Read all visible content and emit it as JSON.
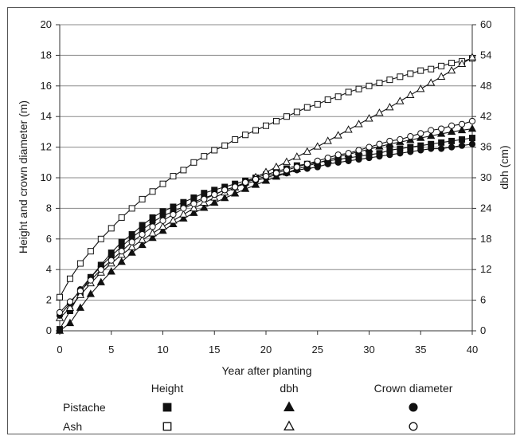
{
  "chart_data": {
    "type": "line",
    "xlabel": "Year after planting",
    "ylabel_left": "Height and crown diameter (m)",
    "ylabel_right": "dbh (cm)",
    "xlim": [
      0,
      40
    ],
    "ylim_left": [
      0,
      20
    ],
    "ylim_right": [
      0,
      60
    ],
    "x_ticks": [
      0,
      5,
      10,
      15,
      20,
      25,
      30,
      35,
      40
    ],
    "y_ticks_left": [
      0,
      2,
      4,
      6,
      8,
      10,
      12,
      14,
      16,
      18,
      20
    ],
    "y_ticks_right": [
      0,
      6,
      12,
      18,
      24,
      30,
      36,
      42,
      48,
      54,
      60
    ],
    "grid": "horizontal",
    "legend": {
      "position": "bottom",
      "columns": [
        "Height",
        "dbh",
        "Crown diameter"
      ],
      "rows": [
        "Pistache",
        "Ash"
      ]
    },
    "series": [
      {
        "name": "Pistache Height",
        "species": "Pistache",
        "measure": "Height",
        "axis": "left",
        "marker": "square",
        "fill": "filled",
        "x": [
          0,
          1,
          2,
          3,
          4,
          5,
          6,
          7,
          8,
          9,
          10,
          11,
          12,
          13,
          14,
          15,
          16,
          17,
          18,
          19,
          20,
          21,
          22,
          23,
          24,
          25,
          26,
          27,
          28,
          29,
          30,
          31,
          32,
          33,
          34,
          35,
          36,
          37,
          38,
          39,
          40
        ],
        "y": [
          0.1,
          1.3,
          2.5,
          3.5,
          4.3,
          5.1,
          5.8,
          6.3,
          6.9,
          7.4,
          7.8,
          8.1,
          8.4,
          8.7,
          9.0,
          9.2,
          9.4,
          9.6,
          9.8,
          10.0,
          10.2,
          10.4,
          10.6,
          10.8,
          10.9,
          11.0,
          11.1,
          11.2,
          11.3,
          11.4,
          11.5,
          11.6,
          11.8,
          11.9,
          12.0,
          12.1,
          12.2,
          12.3,
          12.4,
          12.5,
          12.6
        ]
      },
      {
        "name": "Ash Height",
        "species": "Ash",
        "measure": "Height",
        "axis": "left",
        "marker": "square",
        "fill": "open",
        "x": [
          0,
          1,
          2,
          3,
          4,
          5,
          6,
          7,
          8,
          9,
          10,
          11,
          12,
          13,
          14,
          15,
          16,
          17,
          18,
          19,
          20,
          21,
          22,
          23,
          24,
          25,
          26,
          27,
          28,
          29,
          30,
          31,
          32,
          33,
          34,
          35,
          36,
          37,
          38,
          39,
          40
        ],
        "y": [
          2.2,
          3.4,
          4.4,
          5.2,
          6.0,
          6.7,
          7.4,
          8.0,
          8.6,
          9.1,
          9.6,
          10.1,
          10.5,
          11.0,
          11.4,
          11.8,
          12.1,
          12.5,
          12.8,
          13.1,
          13.4,
          13.7,
          14.0,
          14.3,
          14.6,
          14.8,
          15.1,
          15.3,
          15.6,
          15.8,
          16.0,
          16.2,
          16.4,
          16.6,
          16.8,
          17.0,
          17.1,
          17.3,
          17.5,
          17.6,
          17.8
        ]
      },
      {
        "name": "Pistache dbh",
        "species": "Pistache",
        "measure": "dbh",
        "axis": "right",
        "marker": "triangle",
        "fill": "filled",
        "x": [
          0,
          1,
          2,
          3,
          4,
          5,
          6,
          7,
          8,
          9,
          10,
          11,
          12,
          13,
          14,
          15,
          16,
          17,
          18,
          19,
          20,
          21,
          22,
          23,
          24,
          25,
          26,
          27,
          28,
          29,
          30,
          31,
          32,
          33,
          34,
          35,
          36,
          37,
          38,
          39,
          40
        ],
        "y": [
          0,
          1.5,
          4.5,
          7.2,
          9.5,
          11.6,
          13.5,
          15.3,
          16.8,
          18.2,
          19.6,
          20.9,
          22.0,
          23.1,
          24.1,
          25.1,
          26.0,
          26.9,
          27.8,
          28.6,
          29.4,
          30.2,
          31.0,
          31.7,
          32.3,
          32.9,
          33.5,
          34.1,
          34.6,
          35.1,
          35.6,
          36.1,
          36.6,
          37.0,
          37.4,
          37.8,
          38.2,
          38.6,
          39.0,
          39.3,
          39.6
        ]
      },
      {
        "name": "Ash dbh",
        "species": "Ash",
        "measure": "dbh",
        "axis": "right",
        "marker": "triangle",
        "fill": "open",
        "x": [
          0,
          1,
          2,
          3,
          4,
          5,
          6,
          7,
          8,
          9,
          10,
          11,
          12,
          13,
          14,
          15,
          16,
          17,
          18,
          19,
          20,
          21,
          22,
          23,
          24,
          25,
          26,
          27,
          28,
          29,
          30,
          31,
          32,
          33,
          34,
          35,
          36,
          37,
          38,
          39,
          40
        ],
        "y": [
          2.5,
          4.5,
          7.0,
          9.3,
          11.4,
          13.2,
          14.9,
          16.4,
          17.8,
          19.1,
          20.4,
          21.6,
          22.8,
          24.0,
          25.1,
          26.1,
          27.1,
          28.1,
          29.1,
          30.1,
          31.1,
          32.1,
          33.1,
          34.1,
          35.1,
          36.1,
          37.2,
          38.3,
          39.4,
          40.5,
          41.6,
          42.7,
          43.8,
          45.0,
          46.2,
          47.4,
          48.6,
          49.8,
          51.0,
          52.3,
          53.6
        ]
      },
      {
        "name": "Pistache Crown diameter",
        "species": "Pistache",
        "measure": "Crown diameter",
        "axis": "left",
        "marker": "circle",
        "fill": "filled",
        "x": [
          0,
          1,
          2,
          3,
          4,
          5,
          6,
          7,
          8,
          9,
          10,
          11,
          12,
          13,
          14,
          15,
          16,
          17,
          18,
          19,
          20,
          21,
          22,
          23,
          24,
          25,
          26,
          27,
          28,
          29,
          30,
          31,
          32,
          33,
          34,
          35,
          36,
          37,
          38,
          39,
          40
        ],
        "y": [
          1.0,
          1.8,
          2.7,
          3.5,
          4.2,
          4.9,
          5.5,
          6.1,
          6.6,
          7.1,
          7.5,
          7.8,
          8.1,
          8.4,
          8.7,
          8.9,
          9.2,
          9.4,
          9.6,
          9.8,
          10.0,
          10.2,
          10.3,
          10.5,
          10.6,
          10.7,
          10.9,
          11.0,
          11.1,
          11.2,
          11.3,
          11.4,
          11.5,
          11.6,
          11.7,
          11.8,
          11.9,
          11.9,
          12.0,
          12.1,
          12.2
        ]
      },
      {
        "name": "Ash Crown diameter",
        "species": "Ash",
        "measure": "Crown diameter",
        "axis": "left",
        "marker": "circle",
        "fill": "open",
        "x": [
          0,
          1,
          2,
          3,
          4,
          5,
          6,
          7,
          8,
          9,
          10,
          11,
          12,
          13,
          14,
          15,
          16,
          17,
          18,
          19,
          20,
          21,
          22,
          23,
          24,
          25,
          26,
          27,
          28,
          29,
          30,
          31,
          32,
          33,
          34,
          35,
          36,
          37,
          38,
          39,
          40
        ],
        "y": [
          1.2,
          1.9,
          2.6,
          3.3,
          4.0,
          4.6,
          5.2,
          5.8,
          6.3,
          6.8,
          7.2,
          7.6,
          8.0,
          8.3,
          8.6,
          8.9,
          9.2,
          9.4,
          9.7,
          9.9,
          10.1,
          10.3,
          10.5,
          10.7,
          10.9,
          11.1,
          11.3,
          11.5,
          11.6,
          11.8,
          12.0,
          12.2,
          12.4,
          12.5,
          12.7,
          12.9,
          13.1,
          13.2,
          13.4,
          13.5,
          13.7
        ]
      }
    ]
  }
}
